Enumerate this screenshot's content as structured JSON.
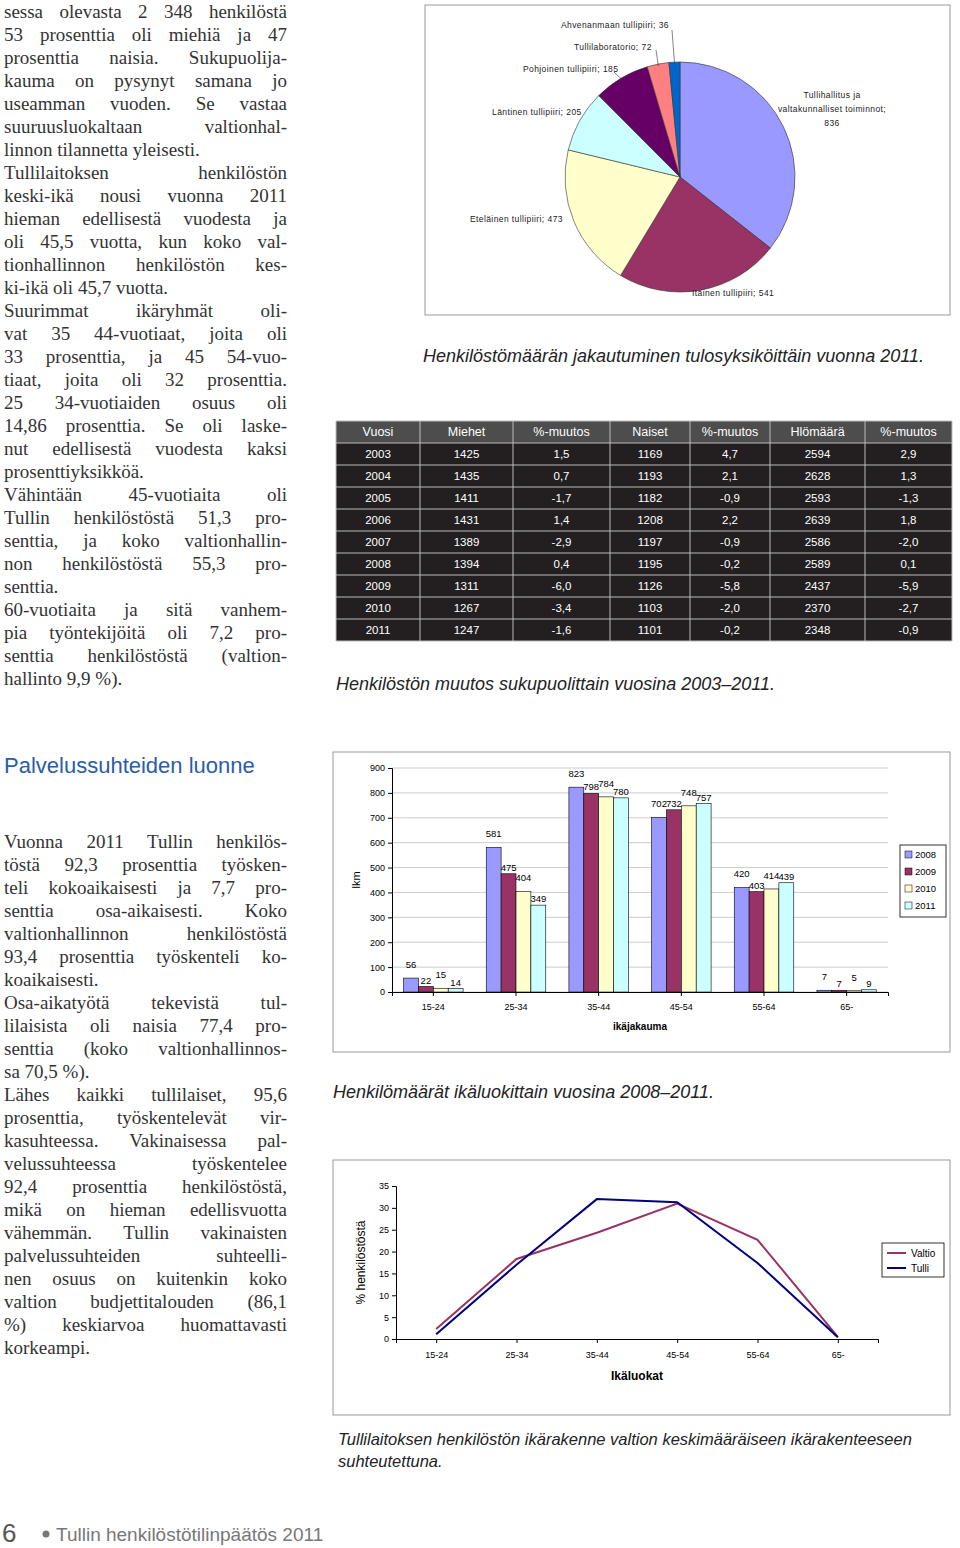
{
  "document": {
    "column_top": [
      [
        "sessa olevasta 2 348 henkilöstä",
        "53 prosenttia oli miehiä ja 47",
        "prosenttia naisia. Sukupuolija-",
        "kauma on pysynyt samana jo",
        "useamman vuoden. Se vastaa",
        "suuruusluokaltaan valtionhal-",
        "linnon tilannetta yleisesti."
      ],
      [
        "Tullilaitoksen henkilöstön",
        "keski-ikä nousi vuonna 2011",
        "hieman edellisestä vuodesta ja",
        "oli 45,5 vuotta, kun koko val-",
        "tionhallinnon henkilöstön kes-",
        "ki-ikä oli 45,7 vuotta."
      ],
      [
        "Suurimmat ikäryhmät oli-",
        "vat 35 44-vuotiaat, joita oli",
        "33 prosenttia, ja 45 54-vuo-",
        "tiaat, joita oli 32 prosenttia.",
        "25 34-vuotiaiden osuus oli",
        "14,86 prosenttia. Se oli laske-",
        "nut edellisestä vuodesta kaksi",
        "prosenttiyksikköä."
      ],
      [
        "Vähintään 45-vuotiaita oli",
        "Tullin henkilöstöstä 51,3 pro-",
        "senttia, ja koko valtionhallin-",
        "non henkilöstöstä 55,3 pro-",
        "senttia."
      ],
      [
        "60-vuotiaita ja sitä vanhem-",
        "pia työntekijöitä oli 7,2 pro-",
        "senttia henkilöstöstä (valtion-",
        "hallinto 9,9 %)."
      ]
    ],
    "section_heading": "Palvelussuhteiden luonne",
    "column_bottom": [
      [
        "Vuonna 2011 Tullin henkilös-",
        "töstä 92,3 prosenttia työsken-",
        "teli kokoaikaisesti ja 7,7 pro-",
        "senttia osa-aikaisesti. Koko",
        "valtionhallinnon henkilöstöstä",
        "93,4 prosenttia työskenteli ko-",
        "koaikaisesti."
      ],
      [
        "Osa-aikatyötä tekevistä tul-",
        "lilaisista oli naisia 77,4 pro-",
        "senttia (koko valtionhallinnos-",
        "sa 70,5 %)."
      ],
      [
        "Lähes kaikki tullilaiset, 95,6",
        "prosenttia, työskentelevät vir-",
        "kasuhteessa. Vakinaisessa pal-",
        "velussuhteessa työskentelee",
        "92,4 prosenttia henkilöstöstä,",
        "mikä on hieman edellisvuotta",
        "vähemmän. Tullin vakinaisten",
        "palvelussuhteiden suhteelli-",
        "nen osuus on kuitenkin koko",
        "valtion budjettitalouden (86,1",
        "%) keskiarvoa huomattavasti",
        "korkeampi."
      ]
    ],
    "footer": {
      "page": "6",
      "title": "Tullin henkilöstötilinpäätös 2011"
    }
  },
  "table": {
    "title": "Henkilöstön muutos sukupuolittain vuosina 2003–2011.",
    "header": [
      "Vuosi",
      "Miehet",
      "%-muutos",
      "Naiset",
      "%-muutos",
      "Hlömäärä",
      "%-muutos"
    ],
    "rows": [
      [
        "2003",
        "1425",
        "1,5",
        "1169",
        "4,7",
        "2594",
        "2,9"
      ],
      [
        "2004",
        "1435",
        "0,7",
        "1193",
        "2,1",
        "2628",
        "1,3"
      ],
      [
        "2005",
        "1411",
        "-1,7",
        "1182",
        "-0,9",
        "2593",
        "-1,3"
      ],
      [
        "2006",
        "1431",
        "1,4",
        "1208",
        "2,2",
        "2639",
        "1,8"
      ],
      [
        "2007",
        "1389",
        "-2,9",
        "1197",
        "-0,9",
        "2586",
        "-2,0"
      ],
      [
        "2008",
        "1394",
        "0,4",
        "1195",
        "-0,2",
        "2589",
        "0,1"
      ],
      [
        "2009",
        "1311",
        "-6,0",
        "1126",
        "-5,8",
        "2437",
        "-5,9"
      ],
      [
        "2010",
        "1267",
        "-3,4",
        "1103",
        "-2,0",
        "2370",
        "-2,7"
      ],
      [
        "2011",
        "1247",
        "-1,6",
        "1101",
        "-0,2",
        "2348",
        "-0,9"
      ]
    ]
  },
  "chart_data": [
    {
      "type": "pie",
      "title": "Henkilöstömäärän jakautuminen tulosyksiköittäin vuonna 2011.",
      "categories": [
        "Tullihallitus ja valtakunnalliset toiminnot;",
        "Itäinen tullipiiri;",
        "Eteläinen tullipiiri;",
        "Läntinen tullipiiri;",
        "Pohjoinen tullipiiri;",
        "Tullilaboratorio;",
        "Ahvenanmaan tullipiiri;"
      ],
      "values": [
        836,
        541,
        473,
        205,
        185,
        72,
        36
      ],
      "colors": [
        "#9999ff",
        "#993366",
        "#ffffcc",
        "#ccffff",
        "#660066",
        "#ff8080",
        "#0066cc"
      ],
      "data_labels": true
    },
    {
      "type": "bar",
      "title": "Henkilömäärät ikäluokittain vuosina 2008–2011.",
      "x_label": "ikäjakauma",
      "y_label": "lkm",
      "categories": [
        "15-24",
        "25-34",
        "35-44",
        "45-54",
        "55-64",
        "65-"
      ],
      "series": [
        {
          "name": "2008",
          "color": "#9999ff",
          "values": [
            56,
            581,
            823,
            702,
            420,
            7
          ]
        },
        {
          "name": "2009",
          "color": "#993366",
          "values": [
            22,
            475,
            798,
            732,
            403,
            7
          ]
        },
        {
          "name": "2010",
          "color": "#ffffcc",
          "values": [
            15,
            404,
            784,
            748,
            414,
            5
          ]
        },
        {
          "name": "2011",
          "color": "#ccffff",
          "values": [
            14,
            349,
            780,
            757,
            439,
            9
          ]
        }
      ],
      "ylim": [
        0,
        900
      ],
      "yticks": [
        0,
        100,
        200,
        300,
        400,
        500,
        600,
        700,
        800,
        900
      ],
      "grid": true,
      "legend": "right",
      "data_labels": true
    },
    {
      "type": "line",
      "title": "Tullilaitoksen henkilöstön ikärakenne valtion keskimääräiseen ikärakenteeseen suhteutettuna.",
      "x_label": "Ikäluokat",
      "y_label": "% henkilöstöstä",
      "categories": [
        "15-24",
        "25-34",
        "35-44",
        "45-54",
        "55-64",
        "65-"
      ],
      "series": [
        {
          "name": "Valtio",
          "color": "#993366",
          "values": [
            2.3,
            18.3,
            24.3,
            31,
            22.7,
            0.5
          ]
        },
        {
          "name": "Tulli",
          "color": "#000080",
          "values": [
            1.1,
            17,
            32,
            31.3,
            17.4,
            0.4
          ]
        }
      ],
      "ylim": [
        0,
        35
      ],
      "yticks": [
        0,
        5,
        10,
        15,
        20,
        25,
        30,
        35
      ],
      "legend": "right"
    }
  ]
}
